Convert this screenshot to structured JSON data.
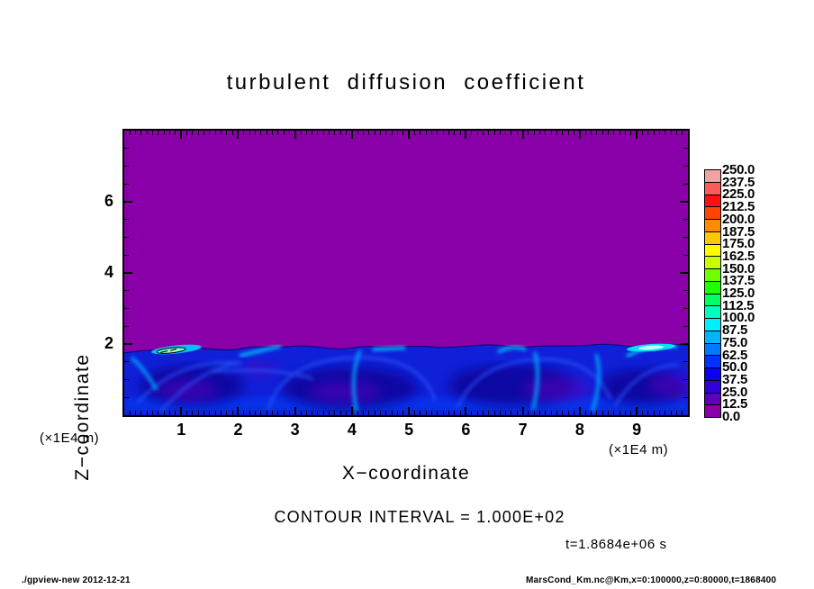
{
  "title": "turbulent diffusion coefficient",
  "axes": {
    "x": {
      "label": "X−coordinate",
      "unit": "(×1E4 m)",
      "min": 0,
      "max": 9.9,
      "major_ticks": [
        1,
        2,
        3,
        4,
        5,
        6,
        7,
        8,
        9
      ],
      "minor_step": 0.1
    },
    "z": {
      "label": "Z−coordinate",
      "unit": "(×1E4 m)",
      "min": 0,
      "max": 8,
      "major_ticks": [
        2,
        4,
        6
      ],
      "minor_step": 0.5
    }
  },
  "colorbar": {
    "labels_top_to_bottom": [
      "250.0",
      "237.5",
      "225.0",
      "212.5",
      "200.0",
      "187.5",
      "175.0",
      "162.5",
      "150.0",
      "137.5",
      "125.0",
      "112.5",
      "100.0",
      "87.5",
      "75.0",
      "62.5",
      "50.0",
      "37.5",
      "25.0",
      "12.5",
      "0.0"
    ],
    "cell_colors_top_to_bottom": [
      "#F2A2A2",
      "#FF5A5A",
      "#FF0F0F",
      "#FF4600",
      "#FF8C00",
      "#FFC800",
      "#FFFA00",
      "#C8FF00",
      "#6EFF00",
      "#1EFF00",
      "#00FF64",
      "#00FFBE",
      "#00F0FF",
      "#00B4FF",
      "#0078FF",
      "#0032FF",
      "#0A00F5",
      "#3200DC",
      "#5F00BE",
      "#8A00A8"
    ]
  },
  "annotations": {
    "contour_interval": "CONTOUR INTERVAL = 1.000E+02",
    "time": "t=1.8684e+06 s"
  },
  "footer": {
    "left": "./gpview-new  2012-12-21",
    "right": "MarsCond_Km.nc@Km,x=0:100000,z=0:80000,t=1868400"
  },
  "field_colors": {
    "background_purple": "#8A00A8",
    "layer_blue": "#1020D8",
    "eddy_core_navy": "#0A0090",
    "swirl_blue": "#2B5BFF",
    "plume_blue": "#00A6FF",
    "streak_cyan": "#00E8FF",
    "hotspot_green": "#8CFFC8"
  },
  "chart_data": {
    "type": "heatmap",
    "title": "turbulent diffusion coefficient",
    "xlabel": "X−coordinate (×1E4 m)",
    "ylabel": "Z−coordinate (×1E4 m)",
    "xlim": [
      0,
      9.9
    ],
    "ylim": [
      0,
      8
    ],
    "x_major_ticks": [
      1,
      2,
      3,
      4,
      5,
      6,
      7,
      8,
      9
    ],
    "z_major_ticks": [
      2,
      4,
      6
    ],
    "contour_interval": 100.0,
    "time_seconds": 1868400,
    "levels": [
      0,
      12.5,
      25,
      37.5,
      50,
      62.5,
      75,
      87.5,
      100,
      112.5,
      125,
      137.5,
      150,
      162.5,
      175,
      187.5,
      200,
      212.5,
      225,
      237.5,
      250
    ],
    "palette_bottom_to_top": [
      "#8A00A8",
      "#5F00BE",
      "#3200DC",
      "#0A00F5",
      "#0032FF",
      "#0078FF",
      "#00B4FF",
      "#00F0FF",
      "#00FFBE",
      "#00FF64",
      "#1EFF00",
      "#6EFF00",
      "#C8FF00",
      "#FFFA00",
      "#FFC800",
      "#FF8C00",
      "#FF4600",
      "#FF0F0F",
      "#FF5A5A",
      "#F2A2A2"
    ],
    "field_summary": {
      "upper_region": "uniform value ≈ 0 (purple, lowest color bin) for z above ≈ 2×1E4 m",
      "boundary_layer": "turbulent convective layer below z ≈ 2×1E4 m with values mostly 12.5–100 (blue shades), circulating eddies with darker navy/purple cores near x ≈ 1, 2.5, 4.5, 6.5, 8.5, and brighter cyan updraft plumes near x ≈ 1.7, 4.1, 5.9, 7.0, 8.8",
      "max_features": "thin bright cyan/green streaks (values > ~100) just below the layer top near x ≈ 1.5–2.3 and x ≈ 8.8–9.5, the left one enclosed by a small black contour line"
    }
  }
}
